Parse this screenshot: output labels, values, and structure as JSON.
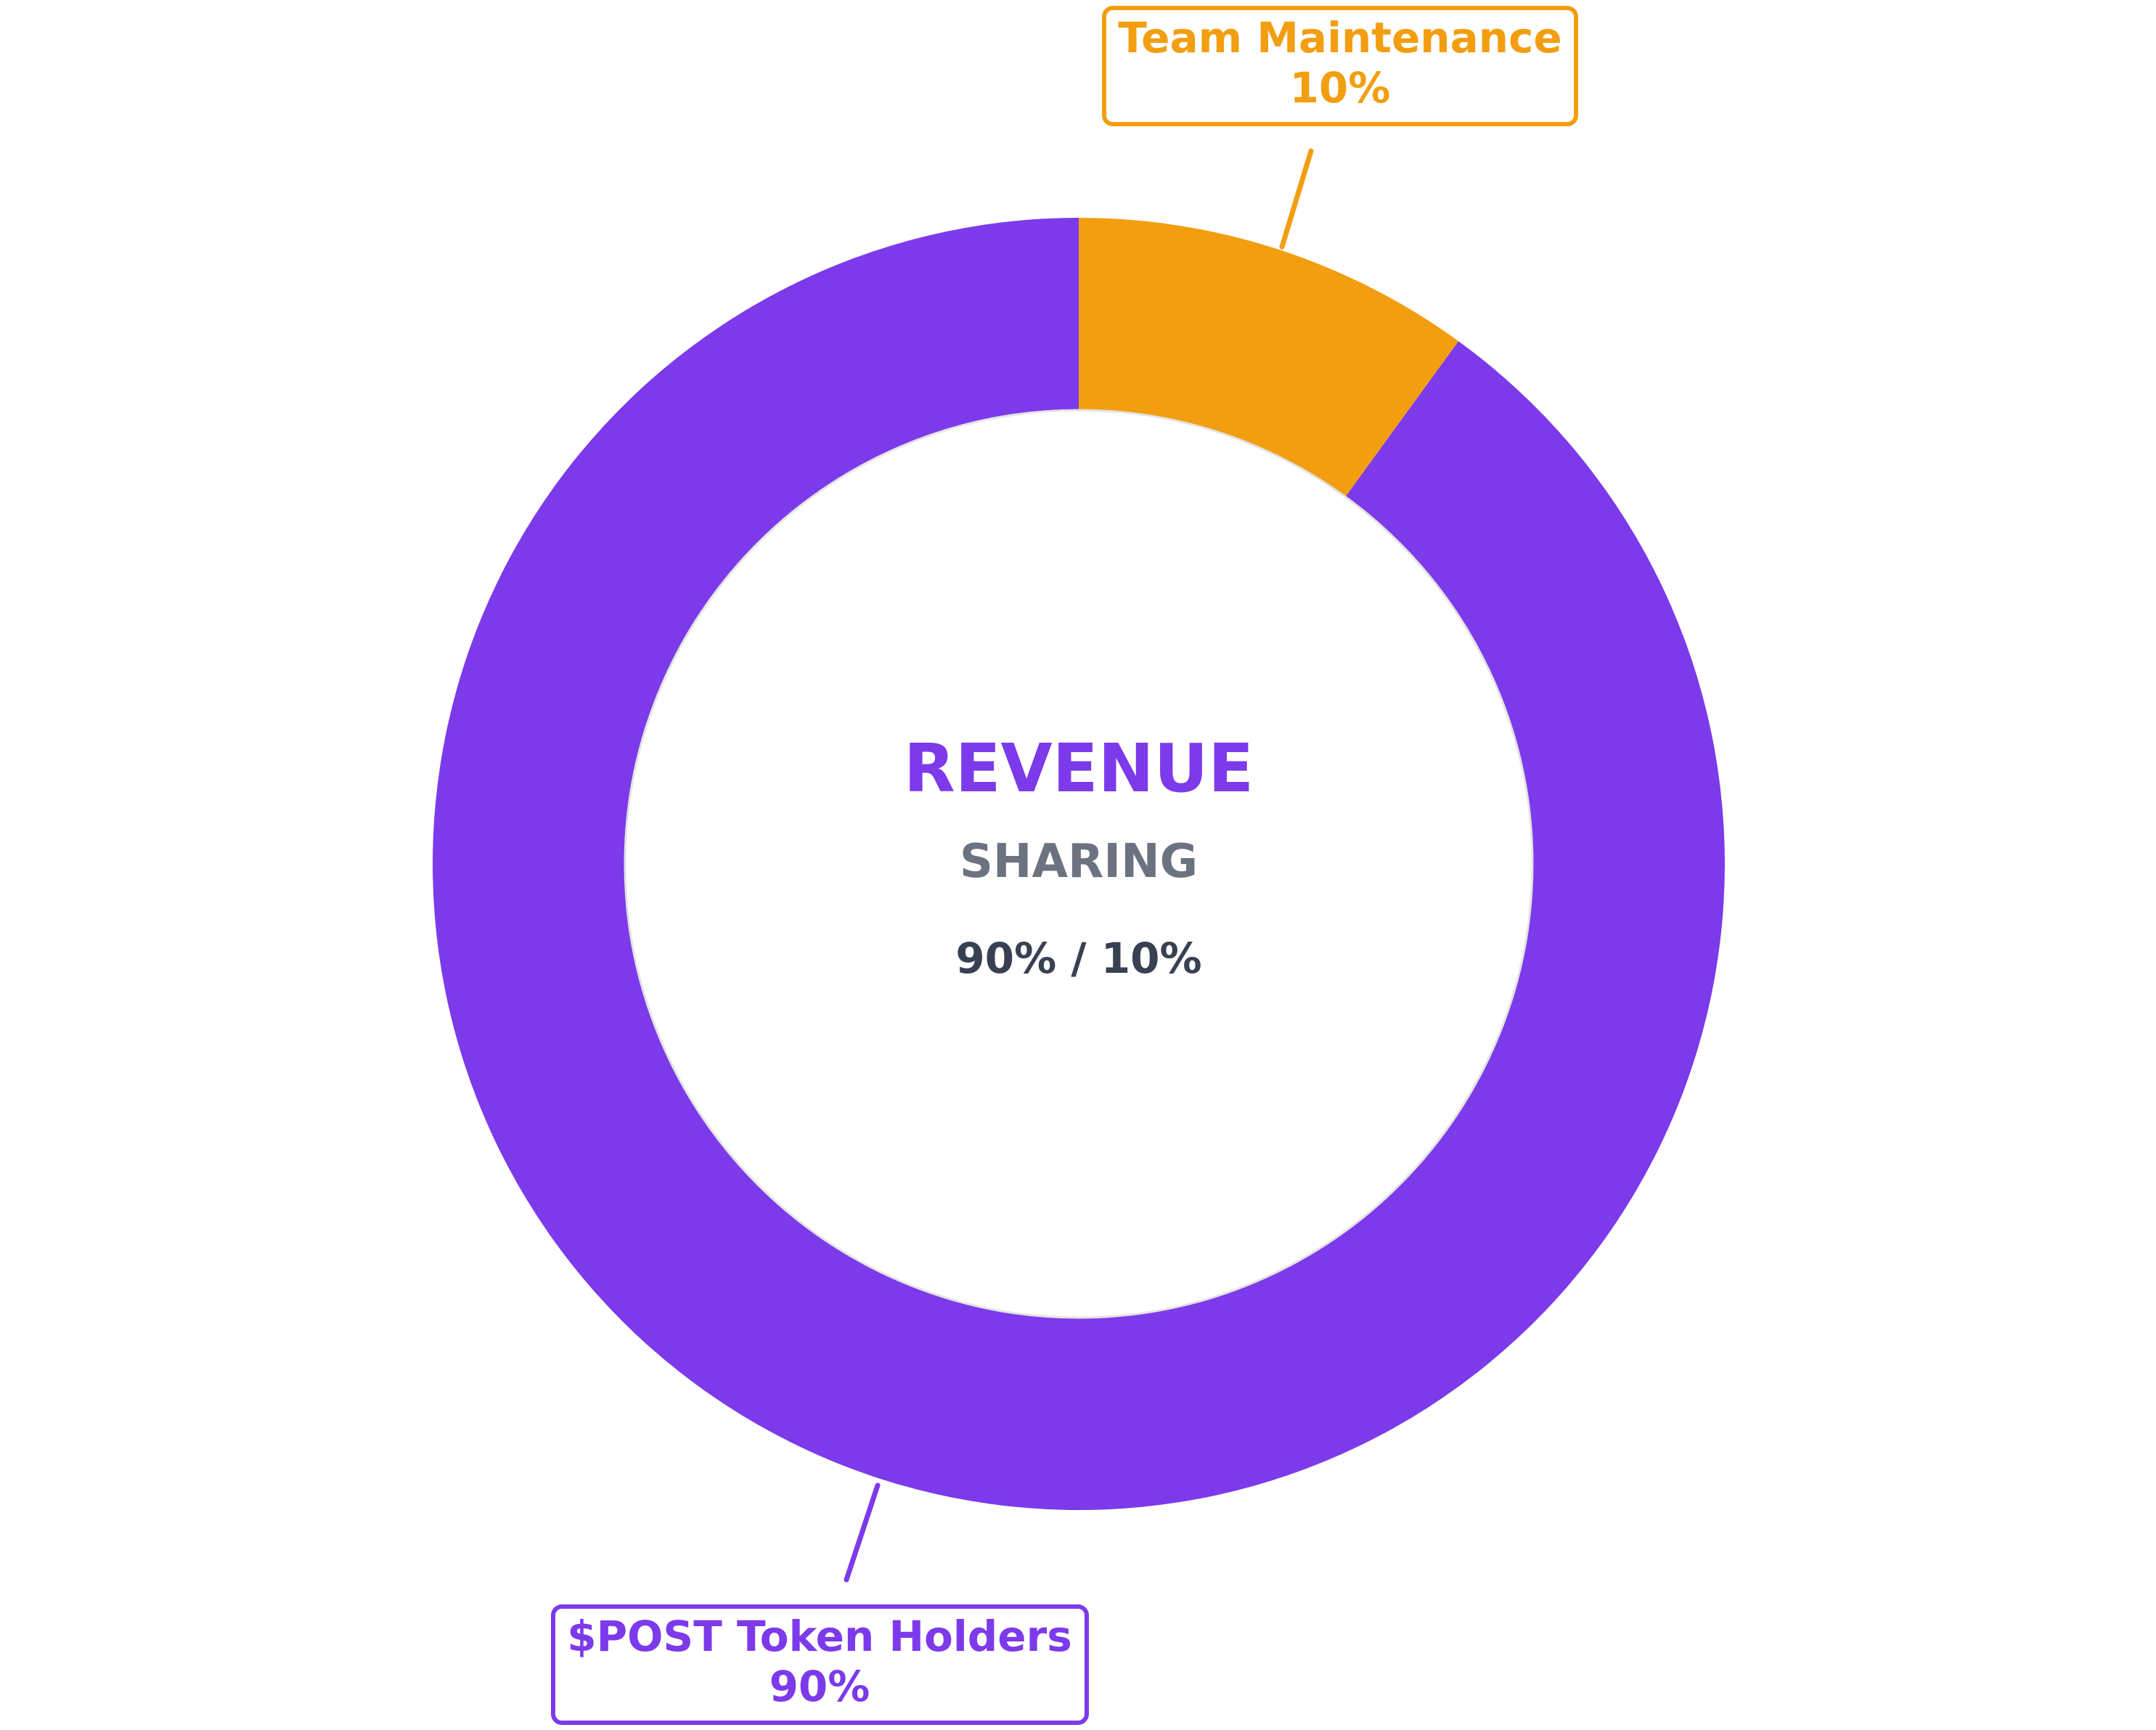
{
  "chart_data": {
    "type": "pie",
    "variant": "donut",
    "slices": [
      {
        "name": "$POST Token Holders",
        "value": 90,
        "label": "90%",
        "color": "#7c3aeb"
      },
      {
        "name": "Team Maintenance",
        "value": 10,
        "label": "10%",
        "color": "#f29e10"
      }
    ],
    "center": {
      "title": "REVENUE",
      "subtitle": "SHARING",
      "ratio": "90% / 10%",
      "title_color": "#7c3aeb",
      "subtitle_color": "#6b7280",
      "ratio_color": "#374151"
    },
    "start_angle_deg": 0,
    "direction": "clockwise"
  }
}
